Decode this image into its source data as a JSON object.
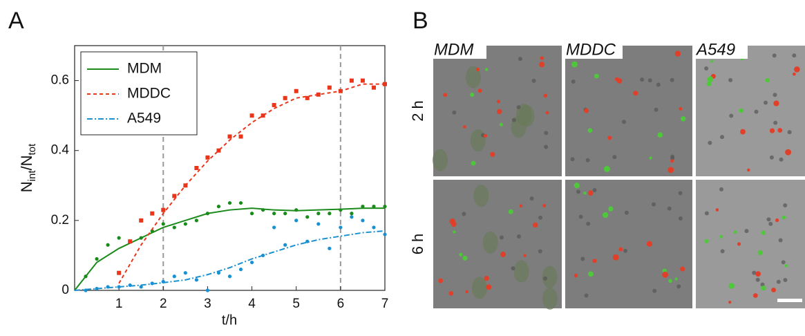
{
  "chart_data": {
    "type": "line",
    "panel_label": "A",
    "xlabel": "t/h",
    "ylabel_parts": [
      "N",
      "int",
      "/N",
      "tot"
    ],
    "xlim": [
      0,
      7
    ],
    "ylim": [
      0,
      0.7
    ],
    "xticks": [
      1,
      2,
      3,
      4,
      5,
      6,
      7
    ],
    "yticks": [
      0,
      0.2,
      0.4,
      0.6
    ],
    "vlines": [
      2,
      6
    ],
    "legend": "upper left",
    "x": [
      0,
      0.5,
      1,
      1.5,
      2,
      2.5,
      3,
      3.5,
      4,
      4.5,
      5,
      5.5,
      6,
      6.5,
      7
    ],
    "scatter_x": [
      0.25,
      0.5,
      0.75,
      1,
      1.25,
      1.5,
      1.75,
      2,
      2.25,
      2.5,
      2.75,
      3,
      3.25,
      3.5,
      3.75,
      4,
      4.25,
      4.5,
      4.75,
      5,
      5.25,
      5.5,
      5.75,
      6,
      6.25,
      6.5,
      6.75,
      7
    ],
    "series": [
      {
        "name": "MDM",
        "color": "#1a8a1a",
        "dash": "solid",
        "marker": "circle",
        "values": [
          0,
          0.08,
          0.12,
          0.15,
          0.18,
          0.2,
          0.22,
          0.23,
          0.235,
          0.23,
          0.228,
          0.23,
          0.232,
          0.235,
          0.235
        ],
        "points": [
          0.04,
          0.09,
          0.13,
          0.15,
          0.14,
          0.15,
          0.17,
          0.19,
          0.18,
          0.19,
          0.2,
          0.22,
          0.24,
          0.25,
          0.25,
          0.22,
          0.23,
          0.22,
          0.22,
          0.23,
          0.21,
          0.22,
          0.22,
          0.23,
          0.22,
          0.24,
          0.24,
          0.24
        ]
      },
      {
        "name": "MDDC",
        "color": "#e8361c",
        "dash": "dashed",
        "marker": "square",
        "values": [
          null,
          null,
          0.02,
          0.13,
          0.22,
          0.3,
          0.37,
          0.43,
          0.48,
          0.52,
          0.55,
          0.56,
          0.57,
          0.59,
          0.59
        ],
        "points": [
          null,
          null,
          null,
          0.05,
          0.14,
          0.2,
          0.22,
          0.23,
          0.27,
          0.3,
          0.35,
          0.38,
          0.4,
          0.44,
          0.44,
          0.5,
          0.5,
          0.53,
          0.55,
          0.57,
          0.55,
          0.56,
          0.58,
          0.57,
          0.6,
          0.6,
          0.58,
          0.59
        ]
      },
      {
        "name": "A549",
        "color": "#1a90d0",
        "dash": "dashdot",
        "marker": "circle",
        "values": [
          0,
          0.005,
          0.01,
          0.015,
          0.022,
          0.03,
          0.045,
          0.065,
          0.09,
          0.11,
          0.13,
          0.145,
          0.155,
          0.165,
          0.17
        ],
        "points": [
          0,
          0.005,
          0.01,
          0.01,
          0.015,
          0.01,
          0.02,
          0.025,
          0.04,
          0.05,
          0.03,
          0,
          0.05,
          0.04,
          0.06,
          0.08,
          0.1,
          0.18,
          0.13,
          0.2,
          0.14,
          0.19,
          0.12,
          0.18,
          0.21,
          0.2,
          0.18,
          0.16
        ]
      }
    ]
  },
  "panel_b": {
    "label": "B",
    "columns": [
      "MDM",
      "MDDC",
      "A549"
    ],
    "rows": [
      "2 h",
      "6 h"
    ]
  }
}
